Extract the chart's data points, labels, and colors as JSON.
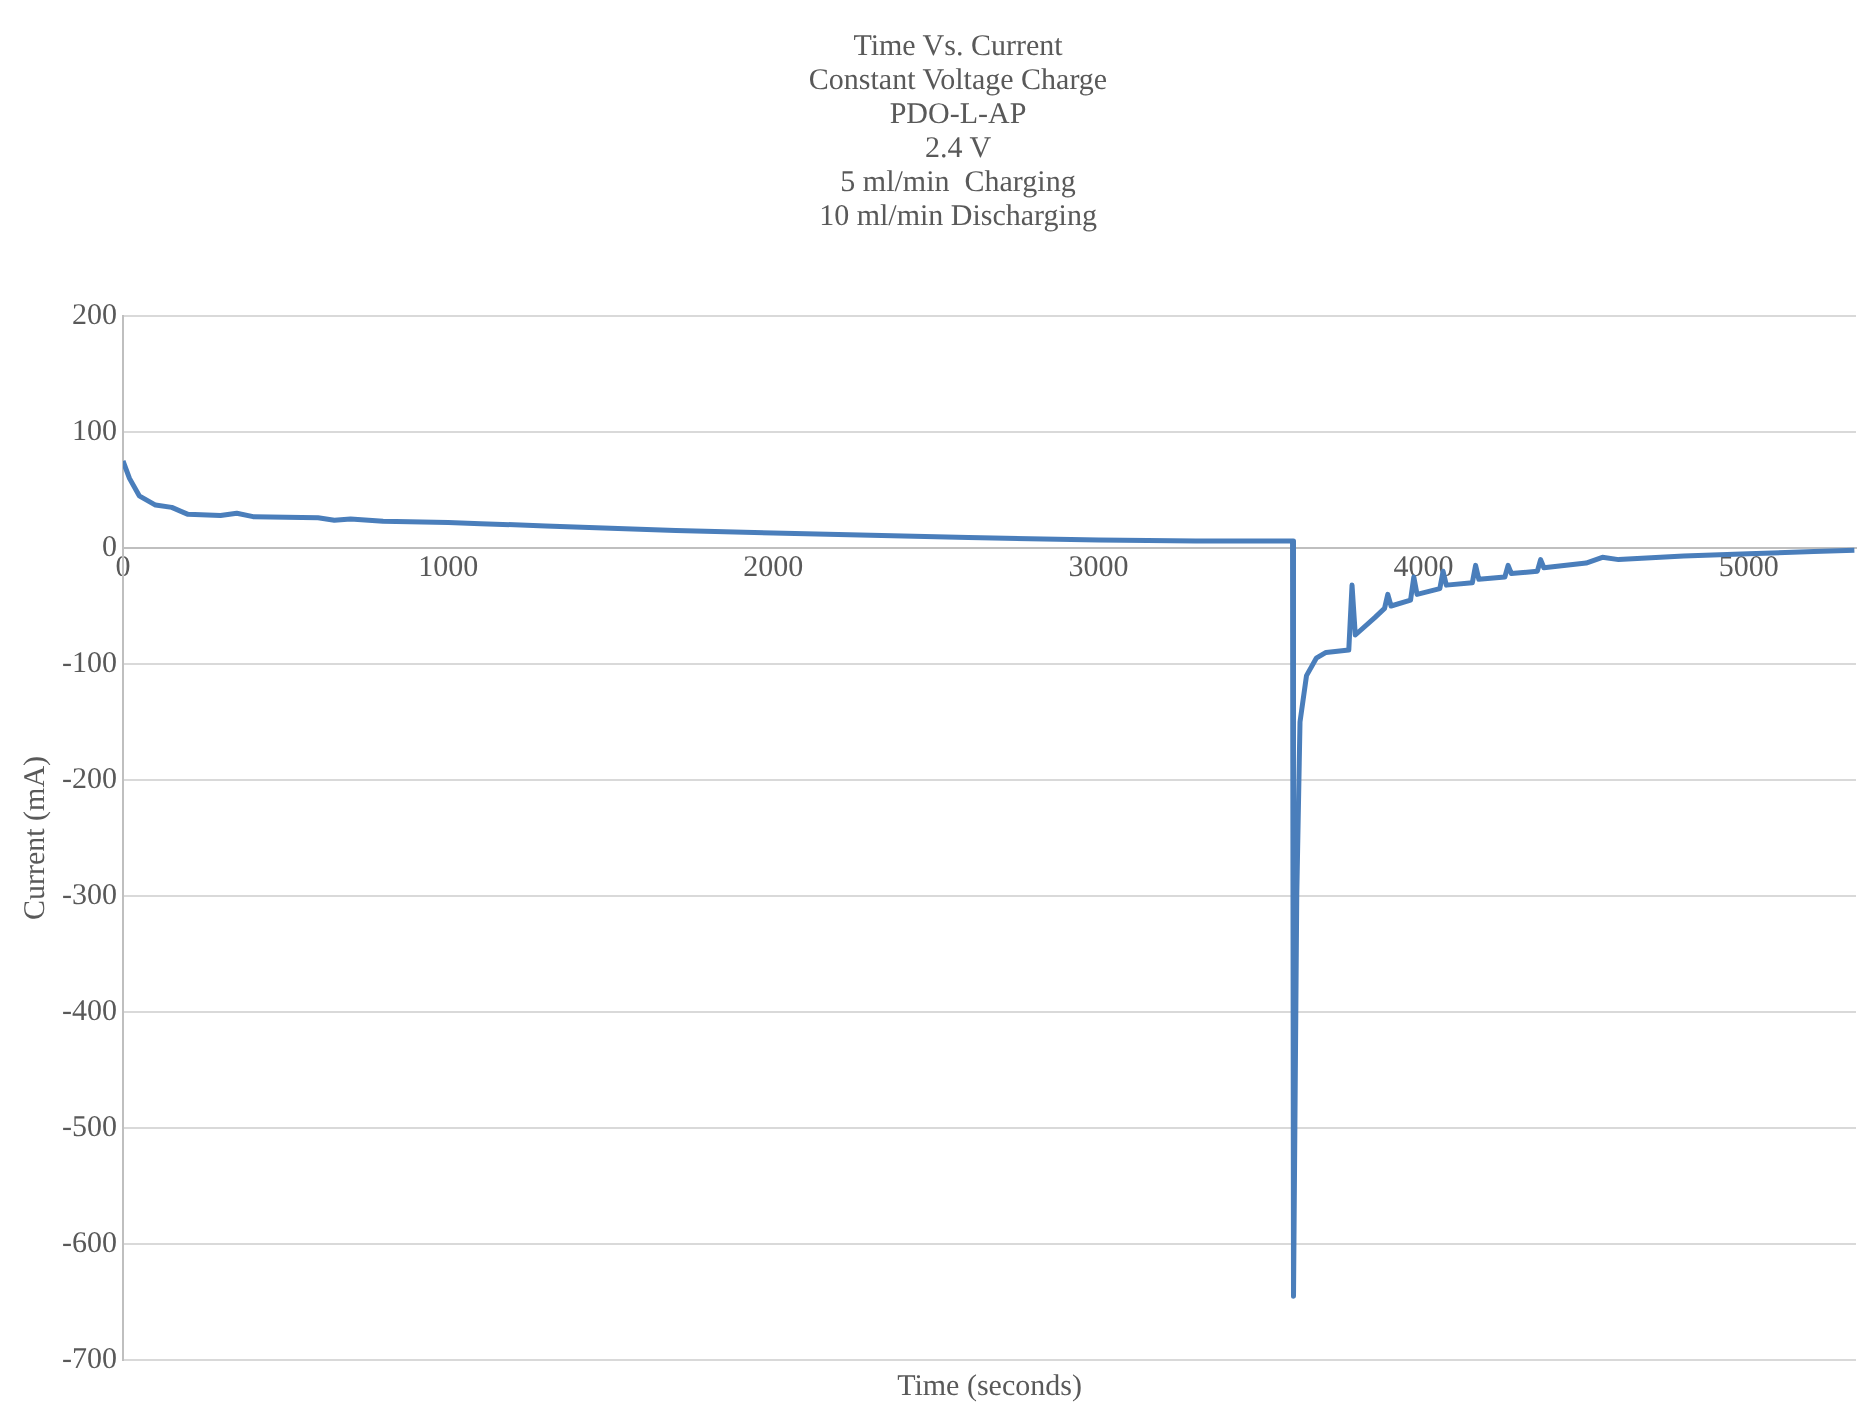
{
  "chart_data": {
    "type": "line",
    "title": "Time Vs. Current",
    "subtitle": "Constant Voltage Charge\nPDO-L-AP\n2.4 V\n5 ml/min  Charging\n10 ml/min Discharging",
    "xlabel": "Time (seconds)",
    "ylabel": "Current (mA)",
    "series": [
      {
        "color": "#4a7ebb",
        "x": [
          0,
          20,
          50,
          100,
          150,
          200,
          300,
          350,
          400,
          600,
          650,
          700,
          800,
          1000,
          1100,
          1300,
          1500,
          1700,
          2000,
          2300,
          2600,
          3000,
          3300,
          3597,
          3600,
          3610,
          3620,
          3640,
          3670,
          3700,
          3770,
          3780,
          3790,
          3850,
          3880,
          3890,
          3900,
          3960,
          3970,
          3980,
          4050,
          4060,
          4070,
          4150,
          4160,
          4170,
          4250,
          4260,
          4270,
          4350,
          4360,
          4370,
          4500,
          4550,
          4600,
          4800,
          5000,
          5200,
          5325
        ],
        "values": [
          75,
          60,
          45,
          37,
          35,
          29,
          28,
          30,
          27,
          26,
          24,
          25,
          23,
          22,
          21,
          19,
          17,
          15,
          13,
          11,
          9,
          7,
          6,
          6,
          -645,
          -300,
          -150,
          -110,
          -95,
          -90,
          -88,
          -32,
          -75,
          -60,
          -52,
          -40,
          -50,
          -45,
          -25,
          -40,
          -35,
          -20,
          -32,
          -30,
          -15,
          -27,
          -25,
          -15,
          -22,
          -20,
          -10,
          -17,
          -13,
          -8,
          -10,
          -7,
          -5,
          -3,
          -2
        ]
      }
    ],
    "xlim": [
      0,
      5330
    ],
    "xticks": [
      0,
      1000,
      2000,
      3000,
      4000,
      5000
    ],
    "ylim": [
      -700,
      200
    ],
    "yticks": [
      -700,
      -600,
      -500,
      -400,
      -300,
      -200,
      -100,
      0,
      100,
      200
    ],
    "grid": "y",
    "legend": false,
    "marker": "none",
    "line_style": "solid"
  }
}
